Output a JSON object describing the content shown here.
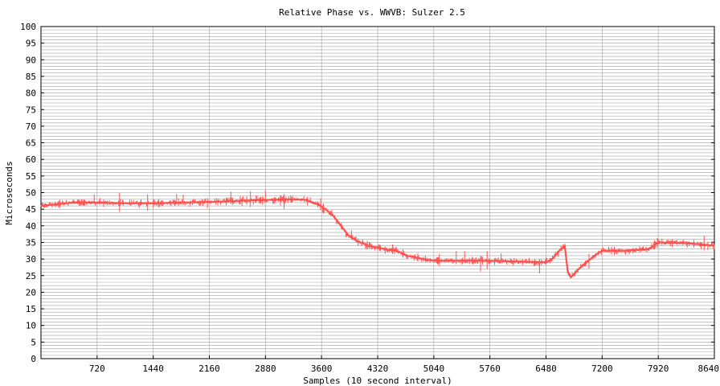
{
  "chart_data": {
    "type": "line",
    "title": "Relative Phase vs. WWVB: Sulzer 2.5",
    "xlabel": "Samples (10 second interval)",
    "ylabel": "Microseconds",
    "xlim": [
      0,
      8640
    ],
    "ylim": [
      0,
      100
    ],
    "x_ticks": [
      720,
      1440,
      2160,
      2880,
      3600,
      4320,
      5040,
      5760,
      6480,
      7200,
      7920,
      8640
    ],
    "y_ticks": [
      0,
      5,
      10,
      15,
      20,
      25,
      30,
      35,
      40,
      45,
      50,
      55,
      60,
      65,
      70,
      75,
      80,
      85,
      90,
      95,
      100
    ],
    "grid": true,
    "series": [
      {
        "color": "#ff5050",
        "x": [
          0,
          200,
          400,
          720,
          1080,
          1440,
          1800,
          2160,
          2520,
          2880,
          3240,
          3400,
          3550,
          3650,
          3750,
          3850,
          3950,
          4050,
          4200,
          4400,
          4550,
          4700,
          4900,
          5040,
          5400,
          5760,
          6120,
          6480,
          6560,
          6650,
          6720,
          6760,
          6800,
          6900,
          7000,
          7100,
          7200,
          7500,
          7800,
          7920,
          8280,
          8640
        ],
        "y": [
          46,
          46.5,
          47,
          47,
          46.8,
          46.8,
          47,
          47.2,
          47.5,
          47.8,
          48,
          47.8,
          46.5,
          45,
          43,
          40,
          37,
          35.5,
          34,
          33,
          32.5,
          31,
          30,
          29.5,
          29.5,
          29.5,
          29.2,
          29,
          30,
          32.5,
          34,
          26,
          24.5,
          27,
          29,
          31,
          32.5,
          32.5,
          33,
          35,
          34.8,
          34
        ]
      }
    ]
  }
}
